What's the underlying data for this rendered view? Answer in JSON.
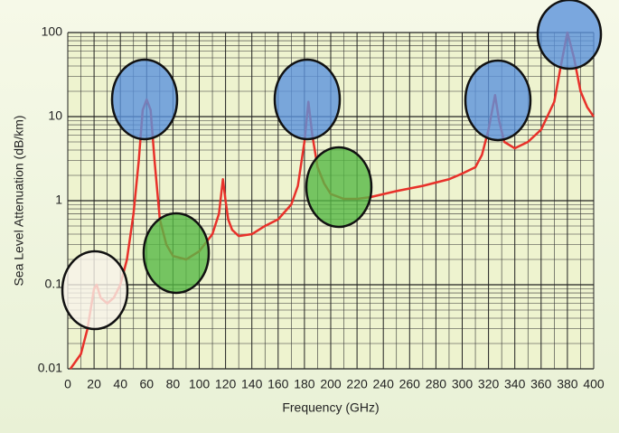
{
  "chart_data": {
    "type": "line",
    "xlabel": "Frequency (GHz)",
    "ylabel": "Sea Level Attenuation (dB/km)",
    "x": [
      2,
      10,
      15,
      20,
      22,
      25,
      30,
      35,
      40,
      45,
      50,
      54,
      57,
      60,
      63,
      66,
      70,
      75,
      80,
      90,
      100,
      110,
      115,
      118,
      120,
      122,
      125,
      130,
      140,
      150,
      160,
      170,
      175,
      180,
      183,
      186,
      190,
      195,
      200,
      210,
      220,
      230,
      250,
      270,
      290,
      300,
      310,
      315,
      320,
      325,
      328,
      332,
      340,
      350,
      360,
      370,
      375,
      380,
      385,
      390,
      395,
      400
    ],
    "series": [
      {
        "color": "#e8312a",
        "values": [
          0.01,
          0.015,
          0.03,
          0.09,
          0.1,
          0.07,
          0.06,
          0.07,
          0.1,
          0.2,
          0.7,
          3,
          12,
          16,
          12,
          3,
          0.6,
          0.3,
          0.22,
          0.2,
          0.25,
          0.4,
          0.7,
          1.8,
          1.0,
          0.6,
          0.45,
          0.38,
          0.4,
          0.5,
          0.6,
          0.9,
          1.5,
          5,
          15,
          6,
          2.5,
          1.6,
          1.2,
          1.05,
          1.05,
          1.1,
          1.3,
          1.5,
          1.8,
          2.1,
          2.5,
          3.5,
          7,
          18,
          9,
          5,
          4.2,
          5,
          7,
          15,
          40,
          100,
          50,
          20,
          13,
          10
        ]
      }
    ],
    "xlim": [
      0,
      400
    ],
    "xticks": [
      0,
      20,
      40,
      60,
      80,
      100,
      120,
      140,
      160,
      180,
      200,
      220,
      240,
      260,
      280,
      300,
      320,
      340,
      360,
      380,
      400
    ],
    "ylim": [
      0.01,
      100
    ],
    "yticks": [
      0.01,
      0.1,
      1,
      10,
      100
    ],
    "log_y": true,
    "grid": true,
    "minor_grid": true
  }
}
